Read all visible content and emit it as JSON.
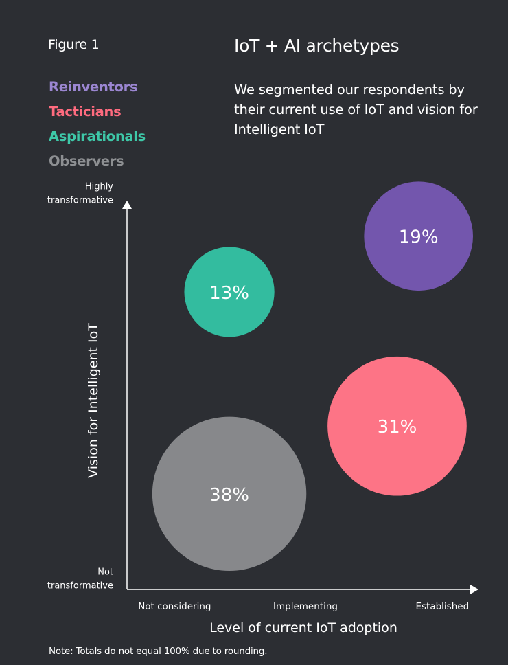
{
  "figure_label": "Figure 1",
  "title": "IoT + AI archetypes",
  "subtitle": "We segmented our respondents by their current use of IoT and vision for Intelligent IoT",
  "legend": [
    {
      "label": "Reinventors",
      "color": "#9b86d1"
    },
    {
      "label": "Tacticians",
      "color": "#ff6b7f"
    },
    {
      "label": "Aspirationals",
      "color": "#3ec8a8"
    },
    {
      "label": "Observers",
      "color": "#8d8f92"
    }
  ],
  "note": "Note: Totals do not equal 100% due to rounding.",
  "chart_data": {
    "type": "scatter",
    "title": "IoT + AI archetypes",
    "xlabel": "Level of current IoT adoption",
    "ylabel": "Vision for Intelligent IoT",
    "xlim": [
      0,
      3
    ],
    "ylim": [
      0,
      3
    ],
    "x_ticks": [
      {
        "value": 0.4,
        "label": "Not considering"
      },
      {
        "value": 1.5,
        "label": "Implementing"
      },
      {
        "value": 2.65,
        "label": "Established"
      }
    ],
    "y_ticks": [
      {
        "value": 0.05,
        "label": [
          "Not",
          "transformative"
        ]
      },
      {
        "value": 2.95,
        "label": [
          "Highly",
          "transformative"
        ]
      }
    ],
    "series": [
      {
        "name": "Reinventors",
        "x": 2.45,
        "y": 2.66,
        "value": 19,
        "label": "19%",
        "color": "#7356ad"
      },
      {
        "name": "Aspirationals",
        "x": 0.86,
        "y": 2.24,
        "value": 13,
        "label": "13%",
        "color": "#33bc9f"
      },
      {
        "name": "Tacticians",
        "x": 2.27,
        "y": 1.23,
        "value": 31,
        "label": "31%",
        "color": "#fd7486"
      },
      {
        "name": "Observers",
        "x": 0.86,
        "y": 0.72,
        "value": 38,
        "label": "38%",
        "color": "#87888b"
      }
    ]
  }
}
